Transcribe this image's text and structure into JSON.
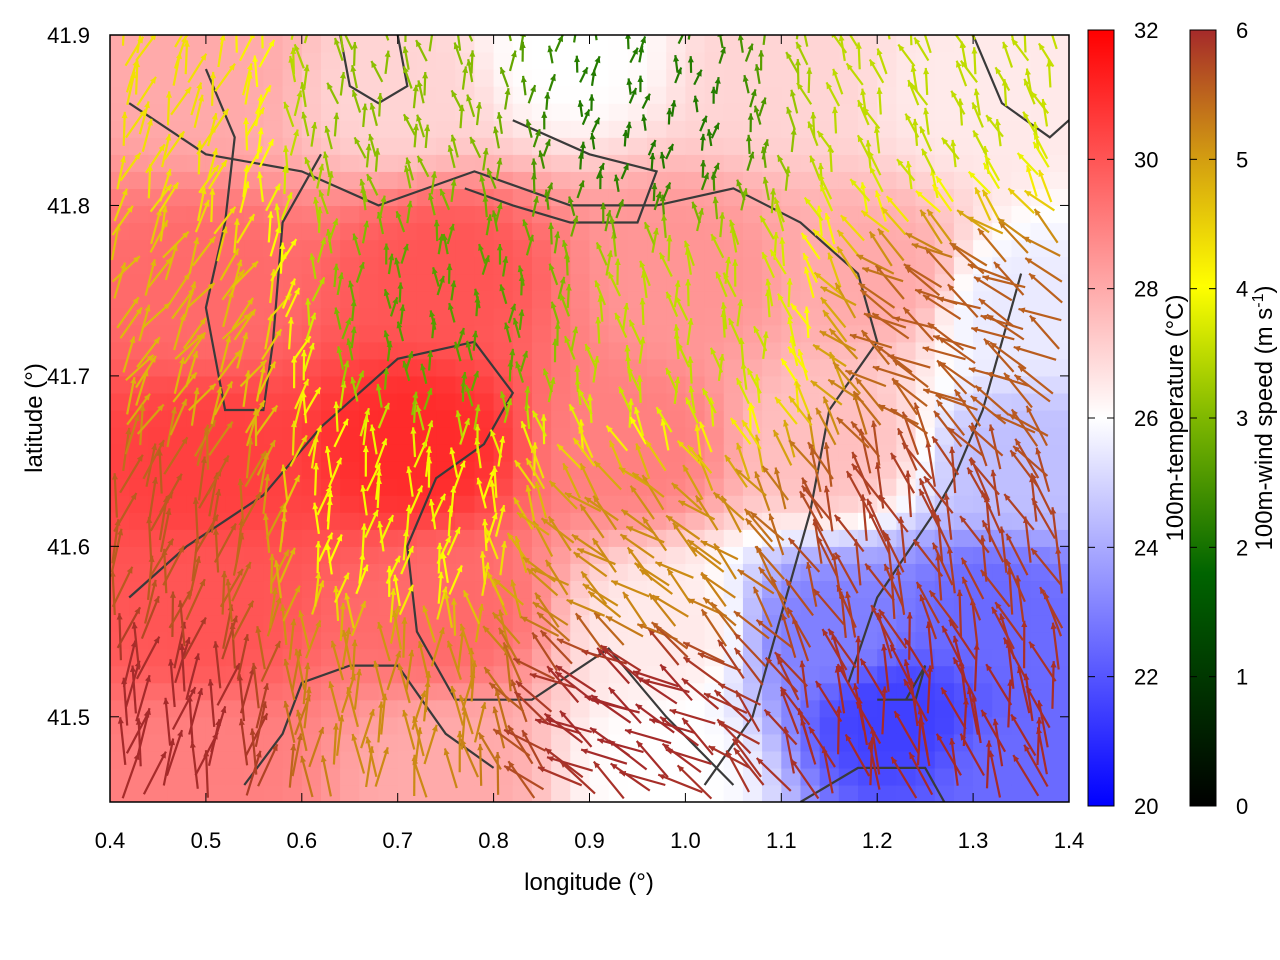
{
  "chart_data": {
    "type": "heatmap",
    "xlabel": "longitude (°)",
    "ylabel": "latitude (°)",
    "xlim": [
      0.4,
      1.4
    ],
    "ylim": [
      41.45,
      41.9
    ],
    "xticks": [
      "0.4",
      "0.5",
      "0.6",
      "0.7",
      "0.8",
      "0.9",
      "1.0",
      "1.1",
      "1.2",
      "1.3",
      "1.4"
    ],
    "yticks": [
      "41.5",
      "41.6",
      "41.7",
      "41.8",
      "41.9"
    ],
    "temperature_colorbar": {
      "label": "100m-temperature (°C)",
      "range": [
        20,
        32
      ],
      "ticks": [
        "20",
        "22",
        "24",
        "26",
        "28",
        "30",
        "32"
      ],
      "colors": [
        "#0000ff",
        "#ffffff",
        "#ff0000"
      ]
    },
    "wind_colorbar": {
      "label_main": "100m-wind speed (m s",
      "label_sup": "-1",
      "label_end": ")",
      "range": [
        0,
        6
      ],
      "ticks": [
        "0",
        "1",
        "2",
        "3",
        "4",
        "5",
        "6"
      ],
      "colors": [
        "#000000",
        "#006400",
        "#7fb800",
        "#ffff00",
        "#d4a010",
        "#a52a2a"
      ]
    },
    "temperature_field_anchors": [
      {
        "lon": 0.5,
        "lat": 41.88,
        "t": 28.0
      },
      {
        "lon": 0.7,
        "lat": 41.87,
        "t": 27.0
      },
      {
        "lon": 0.88,
        "lat": 41.89,
        "t": 26.0
      },
      {
        "lon": 1.1,
        "lat": 41.88,
        "t": 27.0
      },
      {
        "lon": 1.3,
        "lat": 41.87,
        "t": 26.5
      },
      {
        "lon": 0.5,
        "lat": 41.75,
        "t": 29.5
      },
      {
        "lon": 0.75,
        "lat": 41.76,
        "t": 30.0
      },
      {
        "lon": 1.0,
        "lat": 41.76,
        "t": 28.5
      },
      {
        "lon": 1.2,
        "lat": 41.76,
        "t": 28.0
      },
      {
        "lon": 1.35,
        "lat": 41.74,
        "t": 25.5
      },
      {
        "lon": 0.5,
        "lat": 41.65,
        "t": 30.5
      },
      {
        "lon": 0.72,
        "lat": 41.66,
        "t": 31.0
      },
      {
        "lon": 0.95,
        "lat": 41.66,
        "t": 29.0
      },
      {
        "lon": 1.15,
        "lat": 41.66,
        "t": 27.5
      },
      {
        "lon": 1.35,
        "lat": 41.65,
        "t": 24.5
      },
      {
        "lon": 0.5,
        "lat": 41.56,
        "t": 30.0
      },
      {
        "lon": 0.75,
        "lat": 41.56,
        "t": 29.5
      },
      {
        "lon": 0.98,
        "lat": 41.55,
        "t": 26.5
      },
      {
        "lon": 1.15,
        "lat": 41.55,
        "t": 23.0
      },
      {
        "lon": 1.32,
        "lat": 41.56,
        "t": 22.5
      },
      {
        "lon": 0.5,
        "lat": 41.47,
        "t": 29.0
      },
      {
        "lon": 0.75,
        "lat": 41.47,
        "t": 28.0
      },
      {
        "lon": 0.98,
        "lat": 41.47,
        "t": 26.0
      },
      {
        "lon": 1.22,
        "lat": 41.5,
        "t": 21.5
      },
      {
        "lon": 1.35,
        "lat": 41.47,
        "t": 22.5
      }
    ],
    "wind_field_anchors": [
      {
        "lon": 0.45,
        "lat": 41.85,
        "speed": 4.0,
        "dir_deg": 70
      },
      {
        "lon": 0.7,
        "lat": 41.85,
        "speed": 2.5,
        "dir_deg": 100
      },
      {
        "lon": 0.95,
        "lat": 41.85,
        "speed": 1.5,
        "dir_deg": 80
      },
      {
        "lon": 1.25,
        "lat": 41.86,
        "speed": 3.0,
        "dir_deg": 110
      },
      {
        "lon": 0.45,
        "lat": 41.72,
        "speed": 4.5,
        "dir_deg": 60
      },
      {
        "lon": 0.75,
        "lat": 41.73,
        "speed": 2.0,
        "dir_deg": 90
      },
      {
        "lon": 1.0,
        "lat": 41.72,
        "speed": 3.0,
        "dir_deg": 100
      },
      {
        "lon": 1.3,
        "lat": 41.72,
        "speed": 5.5,
        "dir_deg": 150
      },
      {
        "lon": 0.45,
        "lat": 41.6,
        "speed": 5.5,
        "dir_deg": 75
      },
      {
        "lon": 0.7,
        "lat": 41.6,
        "speed": 3.5,
        "dir_deg": 80
      },
      {
        "lon": 0.95,
        "lat": 41.58,
        "speed": 5.0,
        "dir_deg": 140
      },
      {
        "lon": 1.25,
        "lat": 41.6,
        "speed": 5.8,
        "dir_deg": 110
      },
      {
        "lon": 0.45,
        "lat": 41.49,
        "speed": 6.0,
        "dir_deg": 80
      },
      {
        "lon": 0.7,
        "lat": 41.5,
        "speed": 5.0,
        "dir_deg": 90
      },
      {
        "lon": 0.95,
        "lat": 41.5,
        "speed": 6.0,
        "dir_deg": 150
      },
      {
        "lon": 1.25,
        "lat": 41.49,
        "speed": 6.0,
        "dir_deg": 105
      }
    ],
    "elevation_contours": [
      [
        [
          0.42,
          41.86
        ],
        [
          0.5,
          41.83
        ],
        [
          0.6,
          41.82
        ],
        [
          0.68,
          41.8
        ],
        [
          0.78,
          41.82
        ],
        [
          0.88,
          41.8
        ],
        [
          0.97,
          41.8
        ],
        [
          1.05,
          41.81
        ],
        [
          1.12,
          41.79
        ],
        [
          1.18,
          41.76
        ],
        [
          1.2,
          41.72
        ],
        [
          1.15,
          41.68
        ],
        [
          1.13,
          41.62
        ],
        [
          1.1,
          41.56
        ],
        [
          1.07,
          41.5
        ],
        [
          1.02,
          41.46
        ]
      ],
      [
        [
          0.42,
          41.57
        ],
        [
          0.48,
          41.6
        ],
        [
          0.56,
          41.63
        ],
        [
          0.62,
          41.67
        ],
        [
          0.7,
          41.71
        ],
        [
          0.78,
          41.72
        ],
        [
          0.82,
          41.69
        ],
        [
          0.79,
          41.66
        ],
        [
          0.74,
          41.64
        ],
        [
          0.71,
          41.6
        ],
        [
          0.72,
          41.55
        ],
        [
          0.76,
          41.51
        ],
        [
          0.84,
          41.51
        ],
        [
          0.92,
          41.54
        ],
        [
          0.98,
          41.5
        ],
        [
          1.05,
          41.46
        ]
      ],
      [
        [
          0.5,
          41.88
        ],
        [
          0.53,
          41.84
        ],
        [
          0.52,
          41.79
        ],
        [
          0.5,
          41.74
        ],
        [
          0.52,
          41.68
        ],
        [
          0.56,
          41.68
        ],
        [
          0.57,
          41.72
        ],
        [
          0.58,
          41.79
        ],
        [
          0.62,
          41.83
        ]
      ],
      [
        [
          0.54,
          41.46
        ],
        [
          0.58,
          41.49
        ],
        [
          0.6,
          41.52
        ],
        [
          0.65,
          41.53
        ],
        [
          0.7,
          41.53
        ],
        [
          0.75,
          41.49
        ],
        [
          0.8,
          41.47
        ]
      ],
      [
        [
          1.12,
          41.45
        ],
        [
          1.18,
          41.47
        ],
        [
          1.25,
          41.47
        ],
        [
          1.27,
          41.45
        ]
      ],
      [
        [
          0.64,
          41.9
        ],
        [
          0.65,
          41.87
        ],
        [
          0.68,
          41.86
        ],
        [
          0.71,
          41.87
        ],
        [
          0.7,
          41.9
        ]
      ],
      [
        [
          1.3,
          41.9
        ],
        [
          1.33,
          41.86
        ],
        [
          1.38,
          41.84
        ],
        [
          1.4,
          41.85
        ]
      ],
      [
        [
          1.35,
          41.76
        ],
        [
          1.33,
          41.72
        ],
        [
          1.31,
          41.68
        ],
        [
          1.28,
          41.64
        ],
        [
          1.26,
          41.62
        ],
        [
          1.2,
          41.57
        ],
        [
          1.17,
          41.52
        ]
      ],
      [
        [
          0.82,
          41.85
        ],
        [
          0.9,
          41.83
        ],
        [
          0.97,
          41.82
        ],
        [
          0.95,
          41.79
        ],
        [
          0.88,
          41.79
        ],
        [
          0.82,
          41.8
        ],
        [
          0.77,
          41.81
        ]
      ],
      [
        [
          1.2,
          41.51
        ],
        [
          1.24,
          41.51
        ],
        [
          1.25,
          41.53
        ],
        [
          1.23,
          41.51
        ]
      ]
    ]
  }
}
